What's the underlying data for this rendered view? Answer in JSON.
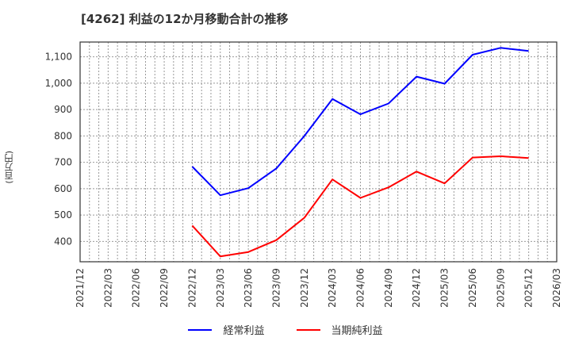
{
  "title": "[4262]  利益の12か月移動合計の推移",
  "y_axis_label": "(百万円)",
  "legend": [
    {
      "label": "経常利益",
      "color": "#0000ff"
    },
    {
      "label": "当期純利益",
      "color": "#ff0000"
    }
  ],
  "chart_data": {
    "type": "line",
    "title": "[4262]  利益の12か月移動合計の推移",
    "xlabel": "",
    "ylabel": "(百万円)",
    "x_tick_labels": [
      "2021/12",
      "2022/03",
      "2022/06",
      "2022/09",
      "2022/12",
      "2023/03",
      "2023/06",
      "2023/09",
      "2023/12",
      "2024/03",
      "2024/06",
      "2024/09",
      "2024/12",
      "2025/03",
      "2025/06",
      "2025/09",
      "2025/12",
      "2026/03"
    ],
    "y_tick_labels": [
      "400",
      "500",
      "600",
      "700",
      "800",
      "900",
      "1,000",
      "1,100"
    ],
    "y_ticks": [
      400,
      500,
      600,
      700,
      800,
      900,
      1000,
      1100
    ],
    "ylim": [
      323,
      1156
    ],
    "grid": true,
    "grid_style": "dotted, monthly vertical lines, 100-unit horizontal lines",
    "legend_position": "bottom",
    "x": [
      "2022/12",
      "2023/03",
      "2023/06",
      "2023/09",
      "2023/12",
      "2024/03",
      "2024/06",
      "2024/09",
      "2024/12",
      "2025/03",
      "2025/06",
      "2025/09",
      "2025/12"
    ],
    "series": [
      {
        "name": "経常利益",
        "color": "#0000ff",
        "values": [
          684,
          575,
          602,
          677,
          800,
          940,
          882,
          923,
          1025,
          998,
          1108,
          1134,
          1122
        ]
      },
      {
        "name": "当期純利益",
        "color": "#ff0000",
        "values": [
          460,
          343,
          360,
          405,
          490,
          635,
          565,
          605,
          665,
          620,
          718,
          723,
          716
        ]
      }
    ]
  }
}
